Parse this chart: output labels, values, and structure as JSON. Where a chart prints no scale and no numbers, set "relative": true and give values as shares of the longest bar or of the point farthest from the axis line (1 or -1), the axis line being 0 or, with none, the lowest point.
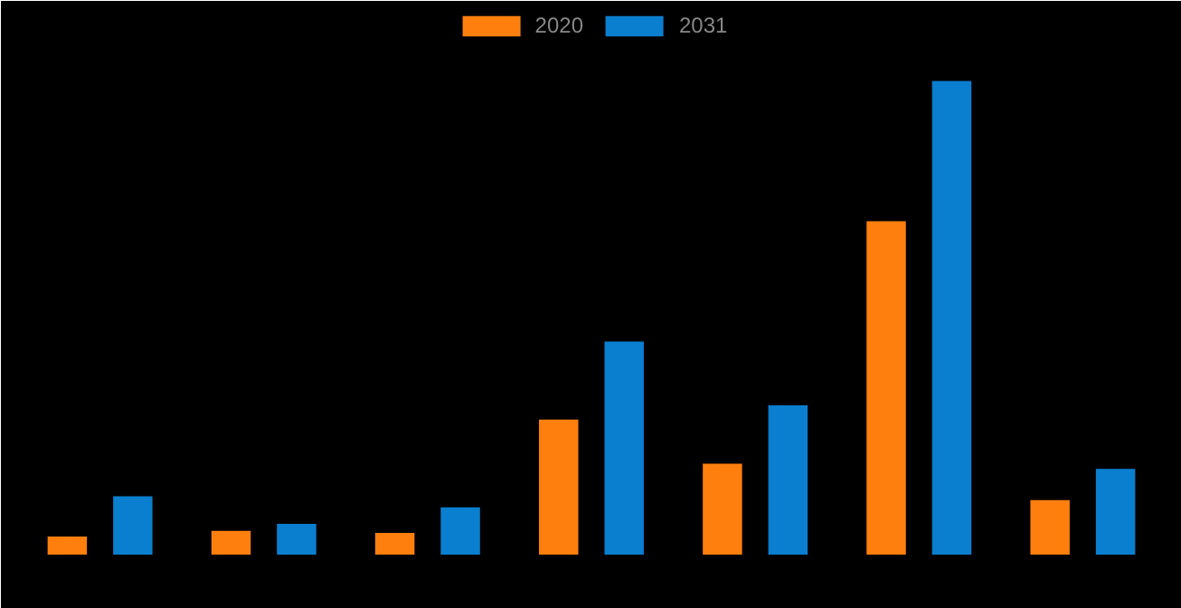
{
  "chart_data": {
    "type": "bar",
    "relative": true,
    "categories": [
      null,
      null,
      null,
      null,
      null,
      null,
      null
    ],
    "series": [
      {
        "name": "2020",
        "color": "#ff7f0e",
        "values": [
          0.038,
          0.05,
          0.046,
          0.285,
          0.192,
          0.704,
          0.115
        ]
      },
      {
        "name": "2031",
        "color": "#0a7fcf",
        "values": [
          0.123,
          0.065,
          0.1,
          0.45,
          0.315,
          1.0,
          0.181
        ]
      }
    ],
    "legend": "top"
  }
}
